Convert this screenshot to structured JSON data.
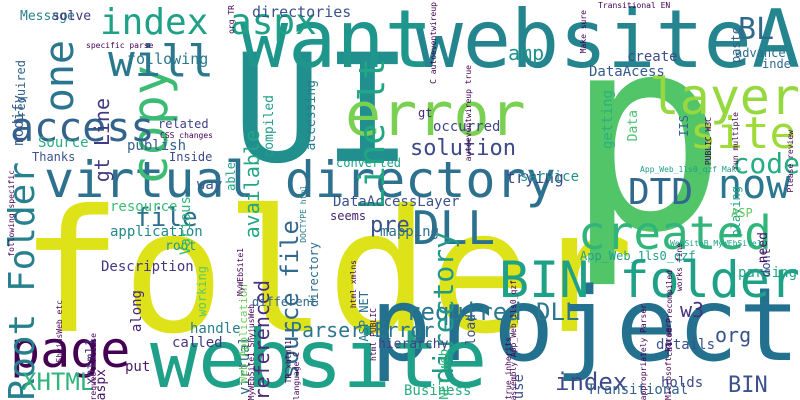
{
  "words": [
    {
      "text": "folder",
      "color": "#dde318"
    },
    {
      "text": "p",
      "color": "#52c569"
    },
    {
      "text": "UI",
      "color": "#218f8d"
    },
    {
      "text": "project",
      "color": "#23718e"
    },
    {
      "text": "website",
      "color": "#1fa088"
    },
    {
      "text": "websiteA",
      "color": "#25858e"
    },
    {
      "text": "want",
      "color": "#1f968b"
    },
    {
      "text": "error",
      "color": "#7ad151"
    },
    {
      "text": "virtual directory",
      "color": "#2d718e"
    },
    {
      "text": "BIN folder",
      "color": "#1fa188"
    },
    {
      "text": "created",
      "color": "#31b57b"
    },
    {
      "text": "page",
      "color": "#440154"
    },
    {
      "text": "copy",
      "color": "#3cbb75"
    },
    {
      "text": "will",
      "color": "#2a788e"
    },
    {
      "text": "index aspx",
      "color": "#1fa187"
    },
    {
      "text": "access",
      "color": "#33638d"
    },
    {
      "text": "one",
      "color": "#2a768e"
    },
    {
      "text": "layer",
      "color": "#95d840"
    },
    {
      "text": "site",
      "color": "#a0da39"
    },
    {
      "text": "now",
      "color": "#2a788e"
    },
    {
      "text": "DLL",
      "color": "#2c718e"
    },
    {
      "text": "DTD",
      "color": "#31688e"
    },
    {
      "text": "Line lt",
      "color": "#22a785"
    },
    {
      "text": "Root Folder",
      "color": "#27808e"
    },
    {
      "text": "solution",
      "color": "#3e4989"
    },
    {
      "text": "XHTML",
      "color": "#2fb47c"
    },
    {
      "text": "index",
      "color": "#3e4a89"
    },
    {
      "text": "required DLL",
      "color": "#2a778e"
    },
    {
      "text": "Parser Error",
      "color": "#2a768e"
    },
    {
      "text": "directory",
      "color": "#1f9a8a"
    },
    {
      "text": "source file",
      "color": "#31688e"
    },
    {
      "text": "code",
      "color": "#27ad81"
    },
    {
      "text": "file",
      "color": "#2d708e"
    },
    {
      "text": "pre",
      "color": "#3b518b"
    },
    {
      "text": "BL",
      "color": "#31688e"
    },
    {
      "text": "BIN",
      "color": "#3b528b"
    },
    {
      "text": "amp",
      "color": "#20928c"
    },
    {
      "text": "w3",
      "color": "#46327e"
    },
    {
      "text": "org",
      "color": "#3a538b"
    },
    {
      "text": "gt Line",
      "color": "#443a83"
    },
    {
      "text": "available",
      "color": "#22a785"
    },
    {
      "text": "referenced",
      "color": "#472d7b"
    },
    {
      "text": "directories",
      "color": "#3b528b"
    },
    {
      "text": "following",
      "color": "#2a788e"
    },
    {
      "text": "Message",
      "color": "#26828e"
    },
    {
      "text": "solve",
      "color": "#463480"
    },
    {
      "text": "DataAcess",
      "color": "#375b8d"
    },
    {
      "text": "DataAccessLayer",
      "color": "#3b528b"
    },
    {
      "text": "mapping",
      "color": "#2d708e"
    },
    {
      "text": "resource",
      "color": "#3cbb75"
    },
    {
      "text": "application",
      "color": "#23898e"
    },
    {
      "text": "Description",
      "color": "#453781"
    },
    {
      "text": "trying",
      "color": "#3f4788"
    },
    {
      "text": "service",
      "color": "#21918c"
    },
    {
      "text": "converted",
      "color": "#1fa088"
    },
    {
      "text": "accessing",
      "color": "#287d8e"
    },
    {
      "text": "compiled",
      "color": "#1f9e89"
    },
    {
      "text": "directory",
      "color": "#2e6f8e"
    },
    {
      "text": "parsing",
      "color": "#20a486"
    },
    {
      "text": "details",
      "color": "#3b518b"
    },
    {
      "text": "holds",
      "color": "#3e4a89"
    },
    {
      "text": "Business",
      "color": "#27ad81"
    },
    {
      "text": "Transitional",
      "color": "#33638d"
    },
    {
      "text": "use",
      "color": "#3d4d8a"
    },
    {
      "text": "load",
      "color": "#3d4d8a"
    },
    {
      "text": "hierarchy",
      "color": "#433e85"
    },
    {
      "text": "virtual",
      "color": "#31688e"
    },
    {
      "text": "called",
      "color": "#453781"
    },
    {
      "text": "put",
      "color": "#481b6d"
    },
    {
      "text": "aspx",
      "color": "#471164"
    },
    {
      "text": "xhtml1",
      "color": "#472f7d"
    },
    {
      "text": "handle",
      "color": "#287c8e"
    },
    {
      "text": "different",
      "color": "#306a8e"
    },
    {
      "text": "along",
      "color": "#482677"
    },
    {
      "text": "root",
      "color": "#1e9b8a"
    },
    {
      "text": "working",
      "color": "#5ec962"
    },
    {
      "text": "Various",
      "color": "#31b57b"
    },
    {
      "text": "way",
      "color": "#38598c"
    },
    {
      "text": "able",
      "color": "#20a386"
    },
    {
      "text": "publish",
      "color": "#34618d"
    },
    {
      "text": "Source",
      "color": "#29af7f"
    },
    {
      "text": "Thanks",
      "color": "#3b528b"
    },
    {
      "text": "Inside",
      "color": "#3e4989"
    },
    {
      "text": "related",
      "color": "#424086"
    },
    {
      "text": "modify",
      "color": "#375a8c"
    },
    {
      "text": "required",
      "color": "#31678e"
    },
    {
      "text": "occurred",
      "color": "#3f4788"
    },
    {
      "text": "getting",
      "color": "#2ab07f"
    },
    {
      "text": "create",
      "color": "#3d4d8a"
    },
    {
      "text": "paste",
      "color": "#355f8d"
    },
    {
      "text": "advance",
      "color": "#2d708e"
    },
    {
      "text": "inde",
      "color": "#31688e"
    },
    {
      "text": "playing",
      "color": "#20a386"
    },
    {
      "text": "dont",
      "color": "#404588"
    },
    {
      "text": "need",
      "color": "#471365"
    },
    {
      "text": "IIS",
      "color": "#31678e"
    },
    {
      "text": "Data",
      "color": "#4ac16d"
    },
    {
      "text": "ASP",
      "color": "#5ec962"
    },
    {
      "text": "ASP NET",
      "color": "#2c728e"
    },
    {
      "text": "NET Web",
      "color": "#2fb47c"
    },
    {
      "text": "App_Web_1ls0_qzf",
      "color": "#1fa088"
    },
    {
      "text": "seems",
      "color": "#482475"
    },
    {
      "text": "Web Application",
      "color": "#6ccd5a"
    },
    {
      "text": "gt",
      "color": "#482878"
    },
    {
      "text": "DOCTYPE html",
      "color": "#287d8e"
    },
    {
      "text": "html xmlns",
      "color": "#440154"
    },
    {
      "text": "html PUBLIC",
      "color": "#440154"
    },
    {
      "text": "language C",
      "color": "#440154"
    },
    {
      "text": "TR xhtml1",
      "color": "#440154"
    },
    {
      "text": "true inherits",
      "color": "#440154"
    },
    {
      "text": "assembly App_Web_1ls0_qzf",
      "color": "#440154"
    },
    {
      "text": "request Please",
      "color": "#440154"
    },
    {
      "text": "ShyjusWeb etc",
      "color": "#440154"
    },
    {
      "text": "MyWEbSite1",
      "color": "#440154"
    },
    {
      "text": "WebSiteB MyWEbSite1",
      "color": "#1fa088"
    },
    {
      "text": "works fine",
      "color": "#440154"
    },
    {
      "text": "called Precompiled",
      "color": "#440154"
    },
    {
      "text": "App_Web_1ls0_qzf Make",
      "color": "#1fa088"
    },
    {
      "text": "MyWEbSite1 ShyjusWeb",
      "color": "#440154"
    },
    {
      "text": "PUBLIC W3C",
      "color": "#440154"
    },
    {
      "text": "run multiple",
      "color": "#440154"
    },
    {
      "text": "Please review",
      "color": "#440154"
    },
    {
      "text": "Make sure",
      "color": "#440154"
    },
    {
      "text": "Transitional EN",
      "color": "#440154"
    },
    {
      "text": "autoeventwireup true",
      "color": "#440154"
    },
    {
      "text": "C autoeventwireup",
      "color": "#440154"
    },
    {
      "text": "org TR",
      "color": "#440154"
    },
    {
      "text": "CSS changes",
      "color": "#440154"
    },
    {
      "text": "specific parse",
      "color": "#440154"
    },
    {
      "text": "following specific",
      "color": "#440154"
    },
    {
      "text": "Microsoft Parser",
      "color": "#440154"
    },
    {
      "text": "appropriately Parser",
      "color": "#440154"
    }
  ]
}
